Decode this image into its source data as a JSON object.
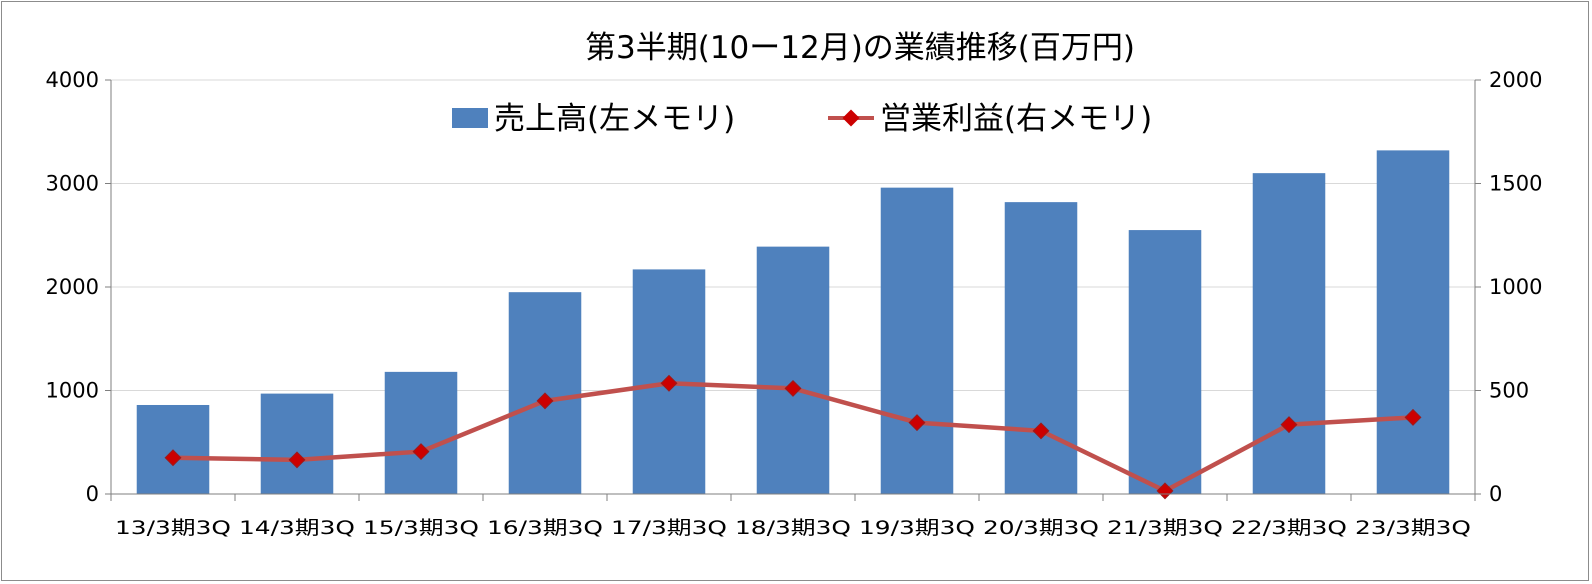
{
  "chart_data": {
    "type": "bar",
    "title": "第3半期(10ー12月)の業績推移(百万円)",
    "categories": [
      "13/3期3Q",
      "14/3期3Q",
      "15/3期3Q",
      "16/3期3Q",
      "17/3期3Q",
      "18/3期3Q",
      "19/3期3Q",
      "20/3期3Q",
      "21/3期3Q",
      "22/3期3Q",
      "23/3期3Q"
    ],
    "series": [
      {
        "name": "売上高(左メモリ)",
        "type": "bar",
        "axis": "left",
        "color": "#4f81bd",
        "values": [
          860,
          970,
          1180,
          1950,
          2170,
          2390,
          2960,
          2820,
          2550,
          3100,
          3320
        ]
      },
      {
        "name": "営業利益(右メモリ)",
        "type": "line",
        "axis": "right",
        "color": "#c0504d",
        "marker_color": "#cc0000",
        "values": [
          175,
          165,
          205,
          450,
          535,
          510,
          345,
          305,
          15,
          335,
          370
        ]
      }
    ],
    "y_left": {
      "ylim": [
        0,
        4000
      ],
      "ticks": [
        "0",
        "1000",
        "2000",
        "3000",
        "4000"
      ]
    },
    "y_right": {
      "ylim": [
        0,
        2000
      ],
      "ticks": [
        "0",
        "500",
        "1000",
        "1500",
        "2000"
      ]
    },
    "grid": true,
    "legend_position": "top"
  }
}
